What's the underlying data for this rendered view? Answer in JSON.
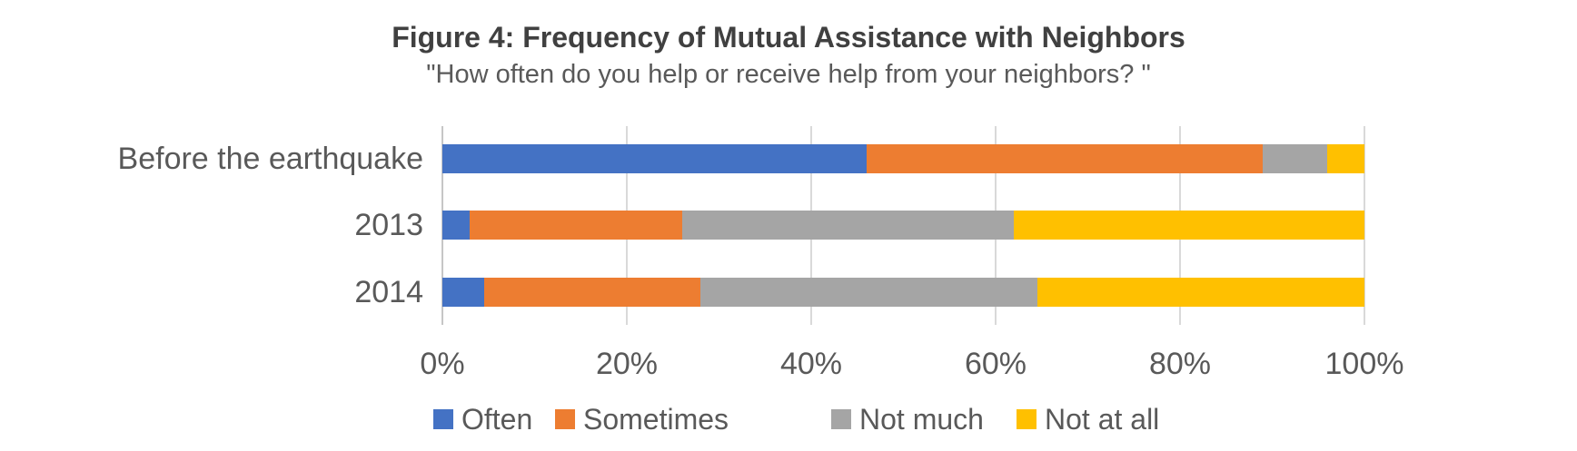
{
  "chart_data": {
    "type": "bar",
    "orientation": "horizontal-stacked",
    "title": "Figure 4: Frequency of Mutual Assistance with Neighbors",
    "subtitle": "\"How often do you help or receive help from your neighbors? \"",
    "categories": [
      "Before the earthquake",
      "2013",
      "2014"
    ],
    "series": [
      {
        "name": "Often",
        "color": "#4472C4",
        "values": [
          46,
          3,
          4.5
        ]
      },
      {
        "name": "Sometimes",
        "color": "#ED7D31",
        "values": [
          43,
          23,
          23.5
        ]
      },
      {
        "name": "Not much",
        "color": "#A5A5A5",
        "values": [
          7,
          36,
          36.5
        ]
      },
      {
        "name": "Not at all",
        "color": "#FFC000",
        "values": [
          4,
          38,
          35.5
        ]
      }
    ],
    "units": "%",
    "x_axis": {
      "min": 0,
      "max": 100,
      "tick_labels": [
        "0%",
        "20%",
        "40%",
        "60%",
        "80%",
        "100%"
      ],
      "tick_values": [
        0,
        20,
        40,
        60,
        80,
        100
      ]
    },
    "grid": true,
    "legend_position": "bottom",
    "colors": {
      "gridline": "#D9D9D9",
      "axis_line": "#C6C6C6",
      "title_text": "#404040",
      "label_text": "#595959",
      "background": "#FFFFFF"
    }
  }
}
